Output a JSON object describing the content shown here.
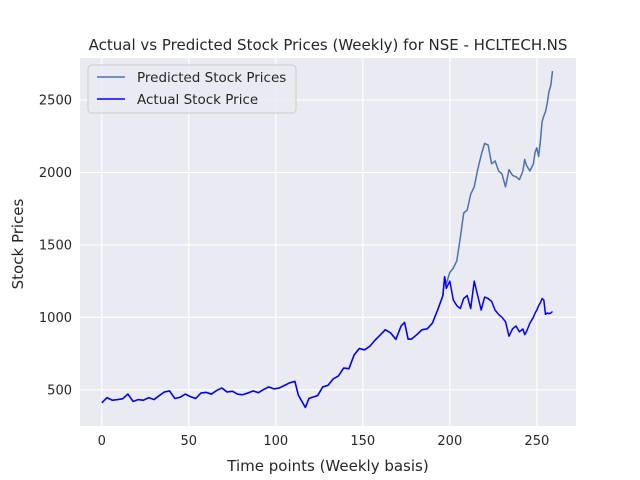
{
  "chart_data": {
    "type": "line",
    "title": "Actual vs Predicted Stock Prices (Weekly) for NSE - HCLTECH.NS",
    "xlabel": "Time points (Weekly basis)",
    "ylabel": "Stock Prices",
    "xlim": [
      -12.5,
      272.5
    ],
    "ylim": [
      250,
      2790
    ],
    "xticks": [
      0,
      50,
      100,
      150,
      200,
      250
    ],
    "yticks": [
      500,
      1000,
      1500,
      2000,
      2500
    ],
    "grid": true,
    "legend_position": "top-left",
    "background": "#eaeaf2",
    "series": [
      {
        "name": "Predicted Stock Prices",
        "color": "#4c72b0",
        "points": [
          [
            0,
            410
          ],
          [
            3,
            445
          ],
          [
            6,
            428
          ],
          [
            9,
            432
          ],
          [
            12,
            438
          ],
          [
            15,
            470
          ],
          [
            18,
            420
          ],
          [
            21,
            432
          ],
          [
            24,
            428
          ],
          [
            27,
            445
          ],
          [
            30,
            432
          ],
          [
            33,
            460
          ],
          [
            36,
            485
          ],
          [
            39,
            492
          ],
          [
            42,
            440
          ],
          [
            45,
            448
          ],
          [
            48,
            470
          ],
          [
            51,
            452
          ],
          [
            54,
            440
          ],
          [
            57,
            478
          ],
          [
            60,
            482
          ],
          [
            63,
            470
          ],
          [
            66,
            495
          ],
          [
            69,
            512
          ],
          [
            72,
            485
          ],
          [
            75,
            490
          ],
          [
            78,
            470
          ],
          [
            81,
            466
          ],
          [
            84,
            478
          ],
          [
            87,
            492
          ],
          [
            90,
            480
          ],
          [
            93,
            502
          ],
          [
            96,
            520
          ],
          [
            99,
            506
          ],
          [
            102,
            512
          ],
          [
            105,
            530
          ],
          [
            108,
            548
          ],
          [
            111,
            558
          ],
          [
            113,
            462
          ],
          [
            115,
            420
          ],
          [
            117,
            378
          ],
          [
            119,
            440
          ],
          [
            121,
            448
          ],
          [
            124,
            460
          ],
          [
            127,
            520
          ],
          [
            130,
            530
          ],
          [
            133,
            575
          ],
          [
            136,
            595
          ],
          [
            139,
            650
          ],
          [
            142,
            645
          ],
          [
            145,
            740
          ],
          [
            148,
            785
          ],
          [
            151,
            775
          ],
          [
            154,
            800
          ],
          [
            157,
            842
          ],
          [
            160,
            878
          ],
          [
            163,
            915
          ],
          [
            166,
            892
          ],
          [
            169,
            848
          ],
          [
            172,
            940
          ],
          [
            174,
            965
          ],
          [
            176,
            850
          ],
          [
            178,
            850
          ],
          [
            181,
            880
          ],
          [
            184,
            915
          ],
          [
            187,
            920
          ],
          [
            190,
            960
          ],
          [
            193,
            1050
          ],
          [
            196,
            1150
          ],
          [
            197,
            1280
          ],
          [
            198,
            1230
          ],
          [
            200,
            1310
          ],
          [
            202,
            1340
          ],
          [
            204,
            1390
          ],
          [
            206,
            1550
          ],
          [
            208,
            1720
          ],
          [
            210,
            1740
          ],
          [
            212,
            1850
          ],
          [
            214,
            1900
          ],
          [
            216,
            2020
          ],
          [
            218,
            2120
          ],
          [
            220,
            2200
          ],
          [
            222,
            2190
          ],
          [
            224,
            2060
          ],
          [
            226,
            2080
          ],
          [
            228,
            2010
          ],
          [
            230,
            1990
          ],
          [
            232,
            1900
          ],
          [
            234,
            2020
          ],
          [
            236,
            1980
          ],
          [
            238,
            1970
          ],
          [
            240,
            1950
          ],
          [
            242,
            2010
          ],
          [
            243,
            2090
          ],
          [
            244,
            2050
          ],
          [
            246,
            2010
          ],
          [
            248,
            2060
          ],
          [
            249,
            2140
          ],
          [
            250,
            2170
          ],
          [
            251,
            2110
          ],
          [
            252,
            2210
          ],
          [
            253,
            2350
          ],
          [
            254,
            2390
          ],
          [
            255,
            2420
          ],
          [
            256,
            2480
          ],
          [
            257,
            2560
          ],
          [
            258,
            2600
          ],
          [
            259,
            2700
          ]
        ]
      },
      {
        "name": "Actual Stock Price",
        "color": "#0000ff",
        "points": [
          [
            0,
            410
          ],
          [
            3,
            445
          ],
          [
            6,
            428
          ],
          [
            9,
            432
          ],
          [
            12,
            438
          ],
          [
            15,
            470
          ],
          [
            18,
            420
          ],
          [
            21,
            432
          ],
          [
            24,
            428
          ],
          [
            27,
            445
          ],
          [
            30,
            432
          ],
          [
            33,
            460
          ],
          [
            36,
            485
          ],
          [
            39,
            492
          ],
          [
            42,
            440
          ],
          [
            45,
            448
          ],
          [
            48,
            470
          ],
          [
            51,
            452
          ],
          [
            54,
            440
          ],
          [
            57,
            478
          ],
          [
            60,
            482
          ],
          [
            63,
            470
          ],
          [
            66,
            495
          ],
          [
            69,
            512
          ],
          [
            72,
            485
          ],
          [
            75,
            490
          ],
          [
            78,
            470
          ],
          [
            81,
            466
          ],
          [
            84,
            478
          ],
          [
            87,
            492
          ],
          [
            90,
            480
          ],
          [
            93,
            502
          ],
          [
            96,
            520
          ],
          [
            99,
            506
          ],
          [
            102,
            512
          ],
          [
            105,
            530
          ],
          [
            108,
            548
          ],
          [
            111,
            558
          ],
          [
            113,
            462
          ],
          [
            115,
            420
          ],
          [
            117,
            378
          ],
          [
            119,
            440
          ],
          [
            121,
            448
          ],
          [
            124,
            460
          ],
          [
            127,
            520
          ],
          [
            130,
            530
          ],
          [
            133,
            575
          ],
          [
            136,
            595
          ],
          [
            139,
            650
          ],
          [
            142,
            645
          ],
          [
            145,
            740
          ],
          [
            148,
            785
          ],
          [
            151,
            775
          ],
          [
            154,
            800
          ],
          [
            157,
            842
          ],
          [
            160,
            878
          ],
          [
            163,
            915
          ],
          [
            166,
            892
          ],
          [
            169,
            848
          ],
          [
            172,
            940
          ],
          [
            174,
            965
          ],
          [
            176,
            850
          ],
          [
            178,
            850
          ],
          [
            181,
            880
          ],
          [
            184,
            915
          ],
          [
            187,
            920
          ],
          [
            190,
            960
          ],
          [
            193,
            1050
          ],
          [
            196,
            1150
          ],
          [
            197,
            1280
          ],
          [
            198,
            1200
          ],
          [
            200,
            1250
          ],
          [
            202,
            1120
          ],
          [
            204,
            1080
          ],
          [
            206,
            1060
          ],
          [
            208,
            1130
          ],
          [
            210,
            1150
          ],
          [
            212,
            1060
          ],
          [
            214,
            1250
          ],
          [
            216,
            1150
          ],
          [
            218,
            1050
          ],
          [
            220,
            1140
          ],
          [
            222,
            1130
          ],
          [
            224,
            1110
          ],
          [
            226,
            1050
          ],
          [
            228,
            1020
          ],
          [
            230,
            1000
          ],
          [
            232,
            970
          ],
          [
            234,
            870
          ],
          [
            236,
            920
          ],
          [
            238,
            940
          ],
          [
            240,
            900
          ],
          [
            242,
            920
          ],
          [
            243,
            880
          ],
          [
            244,
            900
          ],
          [
            246,
            960
          ],
          [
            248,
            1000
          ],
          [
            249,
            1030
          ],
          [
            250,
            1050
          ],
          [
            251,
            1080
          ],
          [
            252,
            1100
          ],
          [
            253,
            1130
          ],
          [
            254,
            1120
          ],
          [
            255,
            1020
          ],
          [
            256,
            1030
          ],
          [
            257,
            1025
          ],
          [
            258,
            1030
          ],
          [
            259,
            1040
          ]
        ]
      }
    ]
  }
}
